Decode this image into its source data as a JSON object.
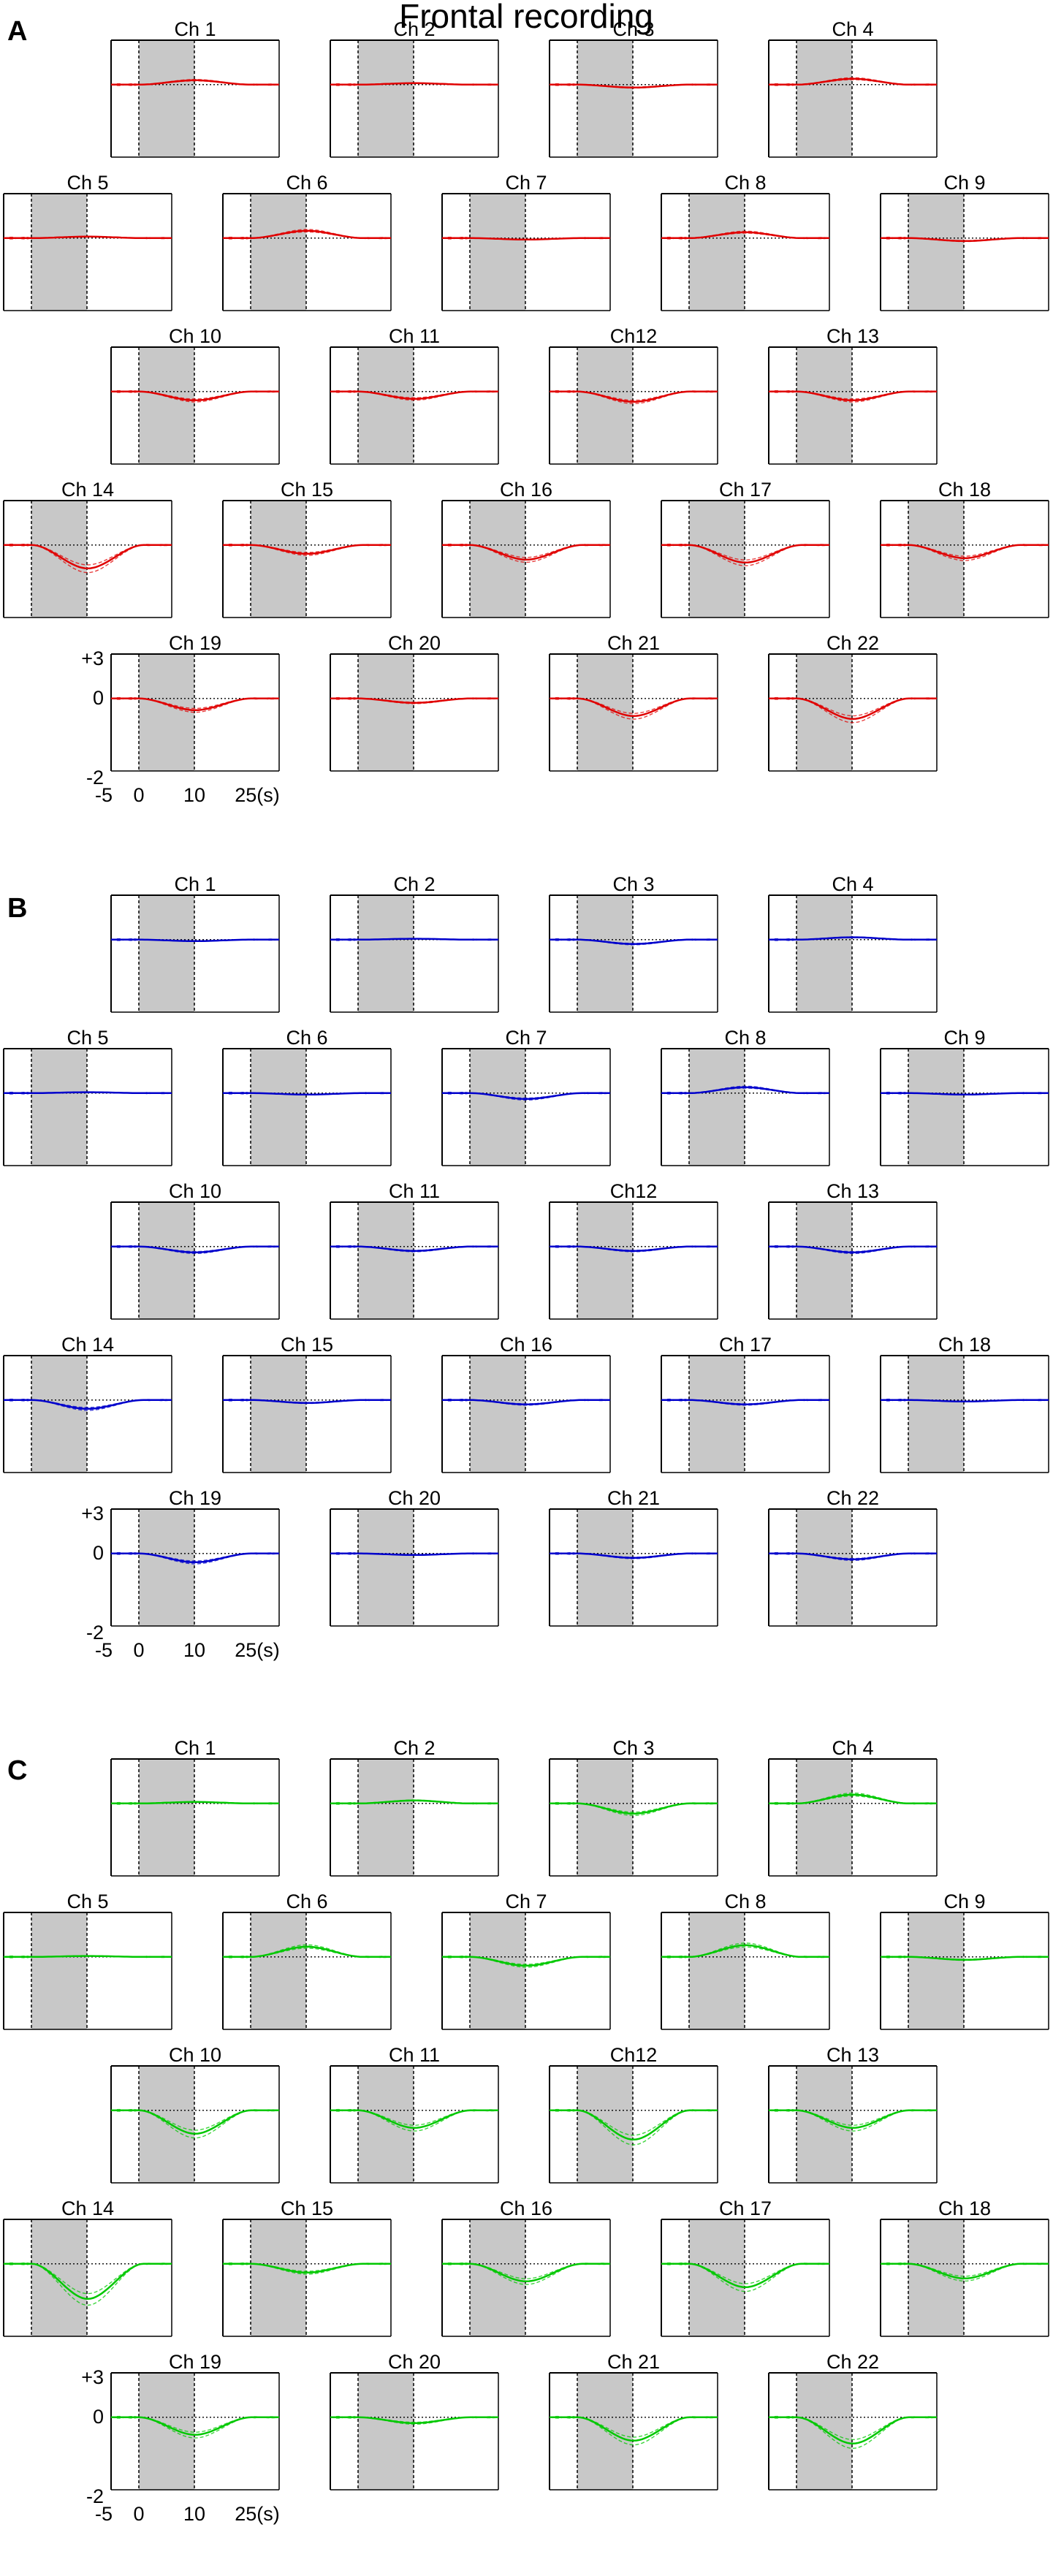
{
  "figure": {
    "title": "Frontal recording",
    "colors": {
      "panel_A": "#e00000",
      "panel_B": "#0000cc",
      "panel_C": "#00c800",
      "task_block": "#c8c8c8",
      "axes": "#000000"
    }
  },
  "chart_data": [
    {
      "type": "line",
      "panel_label": "A",
      "color": "#e00000",
      "x_range_s": [
        -5,
        25
      ],
      "y_range": [
        -2,
        3
      ],
      "task_window_s": [
        0,
        10
      ],
      "axis_labels": {
        "y_ticks": [
          "+3",
          "0",
          "-2"
        ],
        "x_ticks": [
          "-5",
          "0",
          "10",
          "25(s)"
        ]
      },
      "channels": [
        {
          "name": "Ch 1",
          "trough": 0.15
        },
        {
          "name": "Ch 2",
          "trough": 0.05
        },
        {
          "name": "Ch 3",
          "trough": -0.1
        },
        {
          "name": "Ch 4",
          "trough": 0.2
        },
        {
          "name": "Ch 5",
          "trough": 0.05
        },
        {
          "name": "Ch 6",
          "trough": 0.25
        },
        {
          "name": "Ch 7",
          "trough": -0.05
        },
        {
          "name": "Ch 8",
          "trough": 0.2
        },
        {
          "name": "Ch 9",
          "trough": -0.1
        },
        {
          "name": "Ch 10",
          "trough": -0.3
        },
        {
          "name": "Ch 11",
          "trough": -0.25
        },
        {
          "name": "Ch12",
          "trough": -0.35
        },
        {
          "name": "Ch 13",
          "trough": -0.3
        },
        {
          "name": "Ch 14",
          "trough": -0.8
        },
        {
          "name": "Ch 15",
          "trough": -0.3
        },
        {
          "name": "Ch 16",
          "trough": -0.5
        },
        {
          "name": "Ch 17",
          "trough": -0.6
        },
        {
          "name": "Ch 18",
          "trough": -0.45
        },
        {
          "name": "Ch 19",
          "trough": -0.4
        },
        {
          "name": "Ch 20",
          "trough": -0.15
        },
        {
          "name": "Ch 21",
          "trough": -0.6
        },
        {
          "name": "Ch 22",
          "trough": -0.7
        }
      ]
    },
    {
      "type": "line",
      "panel_label": "B",
      "color": "#0000cc",
      "x_range_s": [
        -5,
        25
      ],
      "y_range": [
        -2,
        3
      ],
      "task_window_s": [
        0,
        10
      ],
      "axis_labels": {
        "y_ticks": [
          "+3",
          "0",
          "-2"
        ],
        "x_ticks": [
          "-5",
          "0",
          "10",
          "25(s)"
        ]
      },
      "channels": [
        {
          "name": "Ch 1",
          "trough": -0.05
        },
        {
          "name": "Ch 2",
          "trough": 0.03
        },
        {
          "name": "Ch 3",
          "trough": -0.15
        },
        {
          "name": "Ch 4",
          "trough": 0.08
        },
        {
          "name": "Ch 5",
          "trough": 0.03
        },
        {
          "name": "Ch 6",
          "trough": -0.05
        },
        {
          "name": "Ch 7",
          "trough": -0.2
        },
        {
          "name": "Ch 8",
          "trough": 0.2
        },
        {
          "name": "Ch 9",
          "trough": -0.05
        },
        {
          "name": "Ch 10",
          "trough": -0.2
        },
        {
          "name": "Ch 11",
          "trough": -0.15
        },
        {
          "name": "Ch12",
          "trough": -0.15
        },
        {
          "name": "Ch 13",
          "trough": -0.2
        },
        {
          "name": "Ch 14",
          "trough": -0.3
        },
        {
          "name": "Ch 15",
          "trough": -0.1
        },
        {
          "name": "Ch 16",
          "trough": -0.15
        },
        {
          "name": "Ch 17",
          "trough": -0.15
        },
        {
          "name": "Ch 18",
          "trough": -0.05
        },
        {
          "name": "Ch 19",
          "trough": -0.3
        },
        {
          "name": "Ch 20",
          "trough": -0.05
        },
        {
          "name": "Ch 21",
          "trough": -0.15
        },
        {
          "name": "Ch 22",
          "trough": -0.2
        }
      ]
    },
    {
      "type": "line",
      "panel_label": "C",
      "color": "#00c800",
      "x_range_s": [
        -5,
        25
      ],
      "y_range": [
        -2,
        3
      ],
      "task_window_s": [
        0,
        10
      ],
      "axis_labels": {
        "y_ticks": [
          "+3",
          "0",
          "-2"
        ],
        "x_ticks": [
          "-5",
          "0",
          "10",
          "25(s)"
        ]
      },
      "channels": [
        {
          "name": "Ch 1",
          "trough": 0.05
        },
        {
          "name": "Ch 2",
          "trough": 0.1
        },
        {
          "name": "Ch 3",
          "trough": -0.35
        },
        {
          "name": "Ch 4",
          "trough": 0.3
        },
        {
          "name": "Ch 5",
          "trough": 0.03
        },
        {
          "name": "Ch 6",
          "trough": 0.35
        },
        {
          "name": "Ch 7",
          "trough": -0.3
        },
        {
          "name": "Ch 8",
          "trough": 0.4
        },
        {
          "name": "Ch 9",
          "trough": -0.1
        },
        {
          "name": "Ch 10",
          "trough": -0.8
        },
        {
          "name": "Ch 11",
          "trough": -0.6
        },
        {
          "name": "Ch12",
          "trough": -1.0
        },
        {
          "name": "Ch 13",
          "trough": -0.6
        },
        {
          "name": "Ch 14",
          "trough": -1.2
        },
        {
          "name": "Ch 15",
          "trough": -0.3
        },
        {
          "name": "Ch 16",
          "trough": -0.6
        },
        {
          "name": "Ch 17",
          "trough": -0.8
        },
        {
          "name": "Ch 18",
          "trough": -0.5
        },
        {
          "name": "Ch 19",
          "trough": -0.6
        },
        {
          "name": "Ch 20",
          "trough": -0.2
        },
        {
          "name": "Ch 21",
          "trough": -0.8
        },
        {
          "name": "Ch 22",
          "trough": -0.9
        }
      ]
    }
  ]
}
